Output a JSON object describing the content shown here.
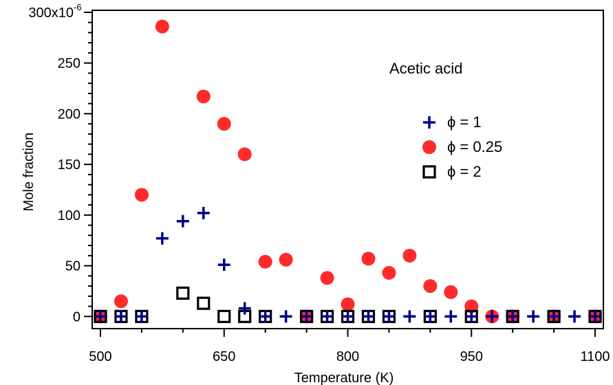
{
  "chart_data": {
    "type": "scatter",
    "annotation": "Acetic acid",
    "xlabel": "Temperature (K)",
    "ylabel": "Mole fraction",
    "xlim": [
      490,
      1110
    ],
    "ylim": [
      -12,
      302
    ],
    "x_ticks": [
      500,
      650,
      800,
      950,
      1100
    ],
    "x_tick_labels": [
      "500",
      "650",
      "800",
      "950",
      "1100"
    ],
    "y_ticks": [
      0,
      50,
      100,
      150,
      200,
      250,
      300
    ],
    "y_tick_labels": [
      "0",
      "50",
      "100",
      "150",
      "200",
      "250",
      "300x10"
    ],
    "y_tick_exponent": "-6",
    "legend_position": "upper-right",
    "series": [
      {
        "name": "ϕ = 1",
        "marker": "plus",
        "color": "#00008B",
        "x": [
          500,
          525,
          550,
          575,
          600,
          625,
          650,
          675,
          700,
          725,
          750,
          775,
          800,
          825,
          850,
          875,
          900,
          925,
          950,
          975,
          1000,
          1025,
          1050,
          1075,
          1100
        ],
        "y": [
          0,
          0,
          0,
          77,
          94,
          102,
          51,
          8,
          0,
          0,
          0,
          0,
          0,
          0,
          0,
          0,
          0,
          0,
          0,
          0,
          0,
          0,
          0,
          0,
          0
        ]
      },
      {
        "name": "ϕ = 0.25",
        "marker": "circle",
        "color": "#FF2A2A",
        "x": [
          500,
          525,
          550,
          575,
          625,
          650,
          675,
          700,
          725,
          750,
          775,
          800,
          825,
          850,
          875,
          900,
          925,
          950,
          975,
          1000,
          1050,
          1100
        ],
        "y": [
          0,
          15,
          120,
          286,
          217,
          190,
          160,
          54,
          56,
          0,
          38,
          12,
          57,
          43,
          60,
          30,
          24,
          10,
          0,
          0,
          0,
          0
        ]
      },
      {
        "name": "ϕ = 2",
        "marker": "square",
        "color": "#000000",
        "x": [
          500,
          525,
          550,
          600,
          625,
          650,
          675,
          700,
          750,
          775,
          800,
          825,
          850,
          900,
          950,
          1000,
          1050,
          1100
        ],
        "y": [
          0,
          0,
          0,
          23,
          13,
          0,
          0,
          0,
          0,
          0,
          0,
          0,
          0,
          0,
          0,
          0,
          0,
          0
        ]
      }
    ]
  }
}
